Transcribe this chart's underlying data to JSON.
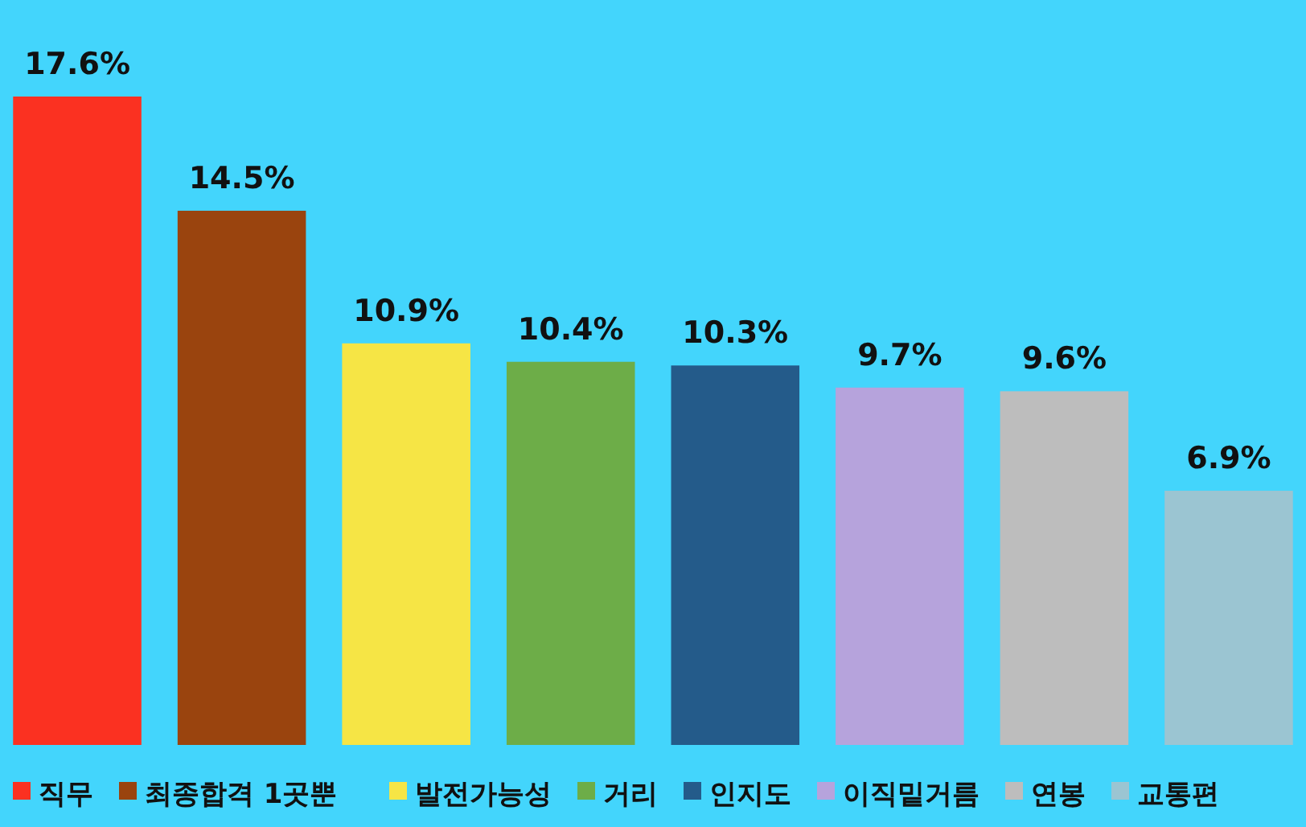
{
  "chart_data": {
    "type": "bar",
    "categories": [
      null,
      null,
      null,
      null,
      null,
      null,
      null,
      null
    ],
    "series": [
      {
        "name": "직무",
        "color": "#fb3121",
        "values": [
          17.6,
          null,
          null,
          null,
          null,
          null,
          null,
          null
        ],
        "value_labels": [
          "17.6%",
          null,
          null,
          null,
          null,
          null,
          null,
          null
        ]
      },
      {
        "name": "최종합격 1곳뿐",
        "color": "#9a440e",
        "values": [
          null,
          14.5,
          null,
          null,
          null,
          null,
          null,
          null
        ],
        "value_labels": [
          null,
          "14.5%",
          null,
          null,
          null,
          null,
          null,
          null
        ]
      },
      {
        "name": "발전가능성",
        "color": "#f6e545",
        "values": [
          null,
          null,
          10.9,
          null,
          null,
          null,
          null,
          null
        ],
        "value_labels": [
          null,
          null,
          "10.9%",
          null,
          null,
          null,
          null,
          null
        ]
      },
      {
        "name": "거리",
        "color": "#6dad48",
        "values": [
          null,
          null,
          null,
          10.4,
          null,
          null,
          null,
          null
        ],
        "value_labels": [
          null,
          null,
          null,
          "10.4%",
          null,
          null,
          null,
          null
        ]
      },
      {
        "name": "인지도",
        "color": "#245b8a",
        "values": [
          null,
          null,
          null,
          null,
          10.3,
          null,
          null,
          null
        ],
        "value_labels": [
          null,
          null,
          null,
          null,
          "10.3%",
          null,
          null,
          null
        ]
      },
      {
        "name": "이직밑거름",
        "color": "#b6a3dc",
        "values": [
          null,
          null,
          null,
          null,
          null,
          9.7,
          null,
          null
        ],
        "value_labels": [
          null,
          null,
          null,
          null,
          null,
          "9.7%",
          null,
          null
        ]
      },
      {
        "name": "연봉",
        "color": "#bdbdbd",
        "values": [
          null,
          null,
          null,
          null,
          null,
          null,
          9.6,
          null
        ],
        "value_labels": [
          null,
          null,
          null,
          null,
          null,
          null,
          "9.6%",
          null
        ]
      },
      {
        "name": "교통편",
        "color": "#9bc5d2",
        "values": [
          null,
          null,
          null,
          null,
          null,
          null,
          null,
          6.9
        ],
        "value_labels": [
          null,
          null,
          null,
          null,
          null,
          null,
          null,
          "6.9%"
        ]
      }
    ],
    "stacked": true,
    "legend": "bottom"
  }
}
